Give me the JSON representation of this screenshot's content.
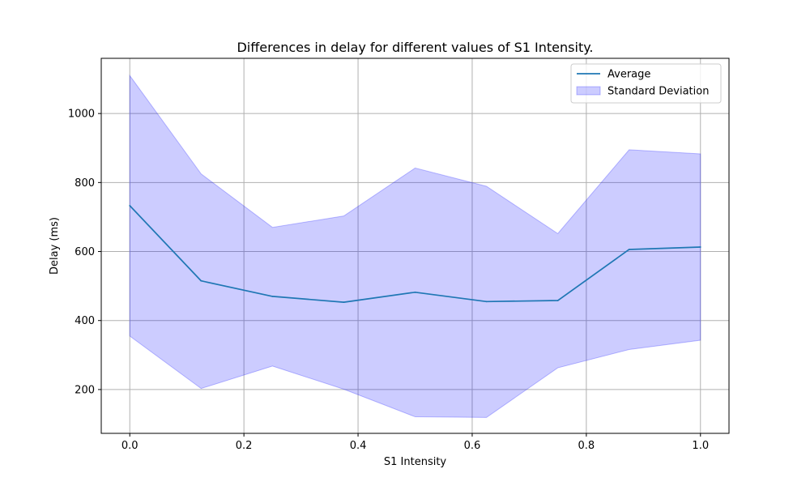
{
  "chart_data": {
    "type": "line",
    "title": "Differences in delay for different values of S1 Intensity.",
    "xlabel": "S1 Intensity",
    "ylabel": "Delay (ms)",
    "xlim": [
      -0.05,
      1.05
    ],
    "ylim": [
      73,
      1160
    ],
    "x_ticks": [
      0.0,
      0.2,
      0.4,
      0.6,
      0.8,
      1.0
    ],
    "x_tick_labels": [
      "0.0",
      "0.2",
      "0.4",
      "0.6",
      "0.8",
      "1.0"
    ],
    "y_ticks": [
      200,
      400,
      600,
      800,
      1000
    ],
    "y_tick_labels": [
      "200",
      "400",
      "600",
      "800",
      "1000"
    ],
    "grid": true,
    "legend_position": "top-right",
    "x": [
      0.0,
      0.125,
      0.25,
      0.375,
      0.5,
      0.625,
      0.75,
      0.875,
      1.0
    ],
    "series": [
      {
        "name": "Average",
        "kind": "line",
        "color": "#1f77b4",
        "values": [
          733,
          515,
          470,
          453,
          482,
          455,
          458,
          606,
          613
        ]
      },
      {
        "name": "Standard Deviation",
        "kind": "band",
        "color": "#0000ff",
        "opacity": 0.2,
        "upper": [
          1110,
          825,
          670,
          703,
          842,
          789,
          652,
          895,
          883
        ],
        "lower": [
          355,
          203,
          268,
          201,
          121,
          119,
          263,
          316,
          343
        ]
      }
    ]
  }
}
